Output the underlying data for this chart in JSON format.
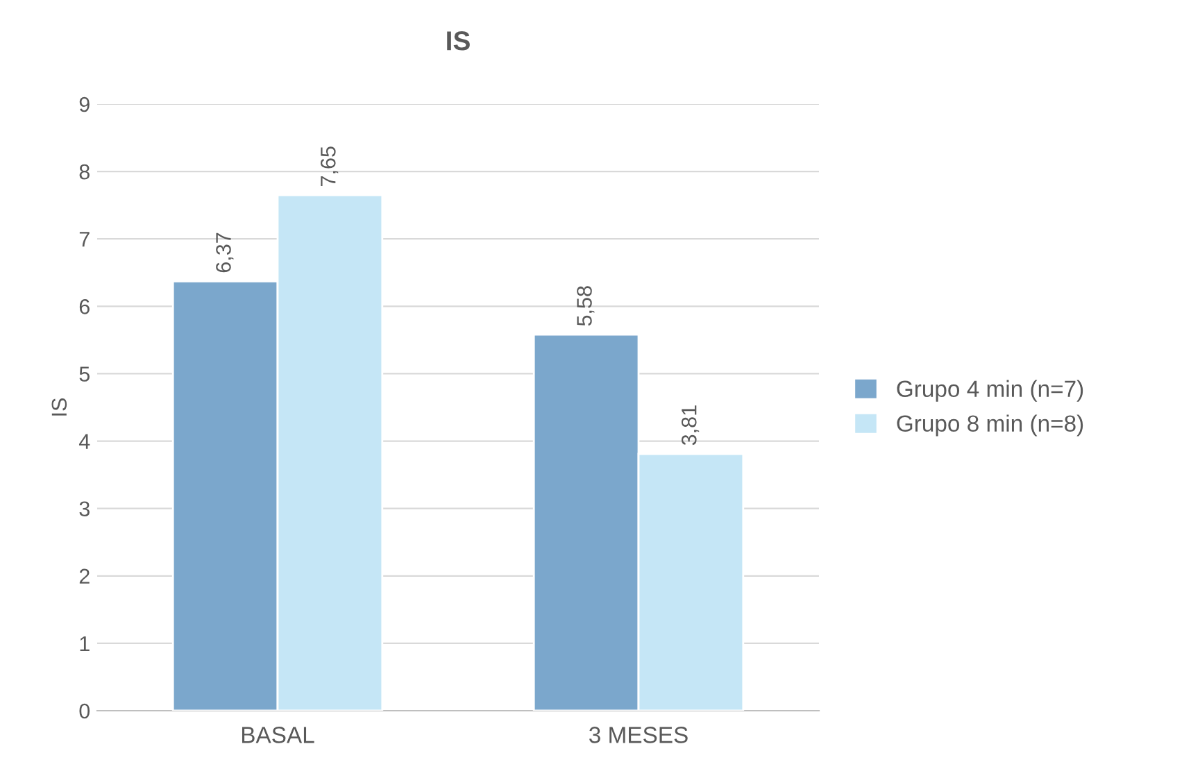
{
  "chart_data": {
    "type": "bar",
    "title": "IS",
    "ylabel": "IS",
    "categories": [
      "BASAL",
      "3 MESES"
    ],
    "series": [
      {
        "name": "Grupo 4 min (n=7)",
        "color": "#7ba7cc",
        "values": [
          6.37,
          5.58
        ],
        "value_labels": [
          "6,37",
          "5,58"
        ]
      },
      {
        "name": "Grupo 8 min (n=8)",
        "color": "#c5e6f6",
        "values": [
          7.65,
          3.81
        ],
        "value_labels": [
          "7,65",
          "3,81"
        ]
      }
    ],
    "ylim": [
      0,
      9
    ],
    "yticks": [
      0,
      1,
      2,
      3,
      4,
      5,
      6,
      7,
      8,
      9
    ],
    "grid": "y",
    "legend": "right"
  }
}
